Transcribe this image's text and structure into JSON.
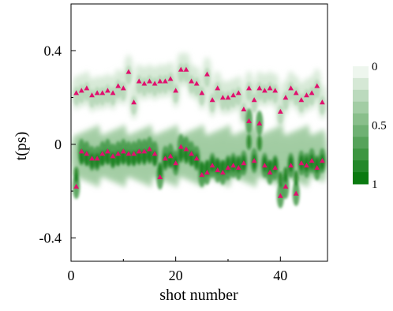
{
  "chart_data": {
    "type": "heatmap",
    "xlabel": "shot number",
    "ylabel": "t(ps)",
    "xlim": [
      0,
      49
    ],
    "ylim": [
      -0.5,
      0.6
    ],
    "xticks": [
      0,
      20,
      40
    ],
    "yticks": [
      0.4,
      0,
      -0.4
    ],
    "xtick_labels": [
      "0",
      "20",
      "40"
    ],
    "ytick_labels": [
      "0.4",
      "0",
      "-0.4"
    ],
    "colorbar": {
      "range": [
        0,
        1
      ],
      "ticks": [
        0,
        0.5,
        1
      ],
      "tick_labels": [
        "0",
        "0.5",
        "1"
      ],
      "color_low": "#eef6ee",
      "color_high": "#0a7a10",
      "levels": 10
    },
    "marker_color": "#e0106e",
    "upper_band_markers": [
      [
        1,
        0.22
      ],
      [
        2,
        0.23
      ],
      [
        3,
        0.24
      ],
      [
        4,
        0.21
      ],
      [
        5,
        0.22
      ],
      [
        6,
        0.22
      ],
      [
        7,
        0.23
      ],
      [
        8,
        0.22
      ],
      [
        9,
        0.25
      ],
      [
        10,
        0.24
      ],
      [
        11,
        0.31
      ],
      [
        12,
        0.18
      ],
      [
        13,
        0.27
      ],
      [
        14,
        0.26
      ],
      [
        15,
        0.27
      ],
      [
        16,
        0.26
      ],
      [
        17,
        0.27
      ],
      [
        18,
        0.27
      ],
      [
        19,
        0.28
      ],
      [
        20,
        0.23
      ],
      [
        21,
        0.32
      ],
      [
        22,
        0.32
      ],
      [
        23,
        0.27
      ],
      [
        24,
        0.26
      ],
      [
        25,
        0.22
      ],
      [
        26,
        0.3
      ],
      [
        27,
        0.19
      ],
      [
        28,
        0.24
      ],
      [
        29,
        0.2
      ],
      [
        30,
        0.2
      ],
      [
        31,
        0.21
      ],
      [
        32,
        0.22
      ],
      [
        33,
        0.15
      ],
      [
        34,
        0.24
      ],
      [
        35,
        0.19
      ],
      [
        36,
        0.24
      ],
      [
        37,
        0.23
      ],
      [
        38,
        0.24
      ],
      [
        39,
        0.23
      ],
      [
        40,
        0.14
      ],
      [
        41,
        0.2
      ],
      [
        42,
        0.24
      ],
      [
        43,
        0.22
      ],
      [
        44,
        0.19
      ],
      [
        45,
        0.21
      ],
      [
        46,
        0.22
      ],
      [
        47,
        0.25
      ],
      [
        48,
        0.18
      ]
    ],
    "lower_band_markers": [
      [
        1,
        -0.18
      ],
      [
        2,
        -0.03
      ],
      [
        3,
        -0.04
      ],
      [
        4,
        -0.06
      ],
      [
        5,
        -0.06
      ],
      [
        6,
        -0.04
      ],
      [
        7,
        -0.03
      ],
      [
        8,
        -0.05
      ],
      [
        9,
        -0.04
      ],
      [
        10,
        -0.03
      ],
      [
        11,
        -0.04
      ],
      [
        12,
        -0.04
      ],
      [
        13,
        -0.03
      ],
      [
        14,
        -0.03
      ],
      [
        15,
        -0.02
      ],
      [
        16,
        -0.04
      ],
      [
        17,
        -0.14
      ],
      [
        18,
        -0.06
      ],
      [
        19,
        -0.05
      ],
      [
        20,
        -0.08
      ],
      [
        21,
        -0.01
      ],
      [
        22,
        -0.02
      ],
      [
        23,
        -0.04
      ],
      [
        24,
        -0.06
      ],
      [
        25,
        -0.13
      ],
      [
        26,
        -0.12
      ],
      [
        27,
        -0.09
      ],
      [
        28,
        -0.11
      ],
      [
        29,
        -0.12
      ],
      [
        30,
        -0.1
      ],
      [
        31,
        -0.09
      ],
      [
        32,
        -0.1
      ],
      [
        33,
        -0.08
      ],
      [
        34,
        0.1
      ],
      [
        35,
        -0.07
      ],
      [
        36,
        0.09
      ],
      [
        37,
        -0.09
      ],
      [
        38,
        -0.12
      ],
      [
        39,
        -0.1
      ],
      [
        40,
        -0.22
      ],
      [
        41,
        -0.18
      ],
      [
        42,
        -0.09
      ],
      [
        43,
        -0.21
      ],
      [
        44,
        -0.08
      ],
      [
        45,
        -0.09
      ],
      [
        46,
        -0.07
      ],
      [
        47,
        -0.1
      ],
      [
        48,
        -0.07
      ]
    ]
  }
}
